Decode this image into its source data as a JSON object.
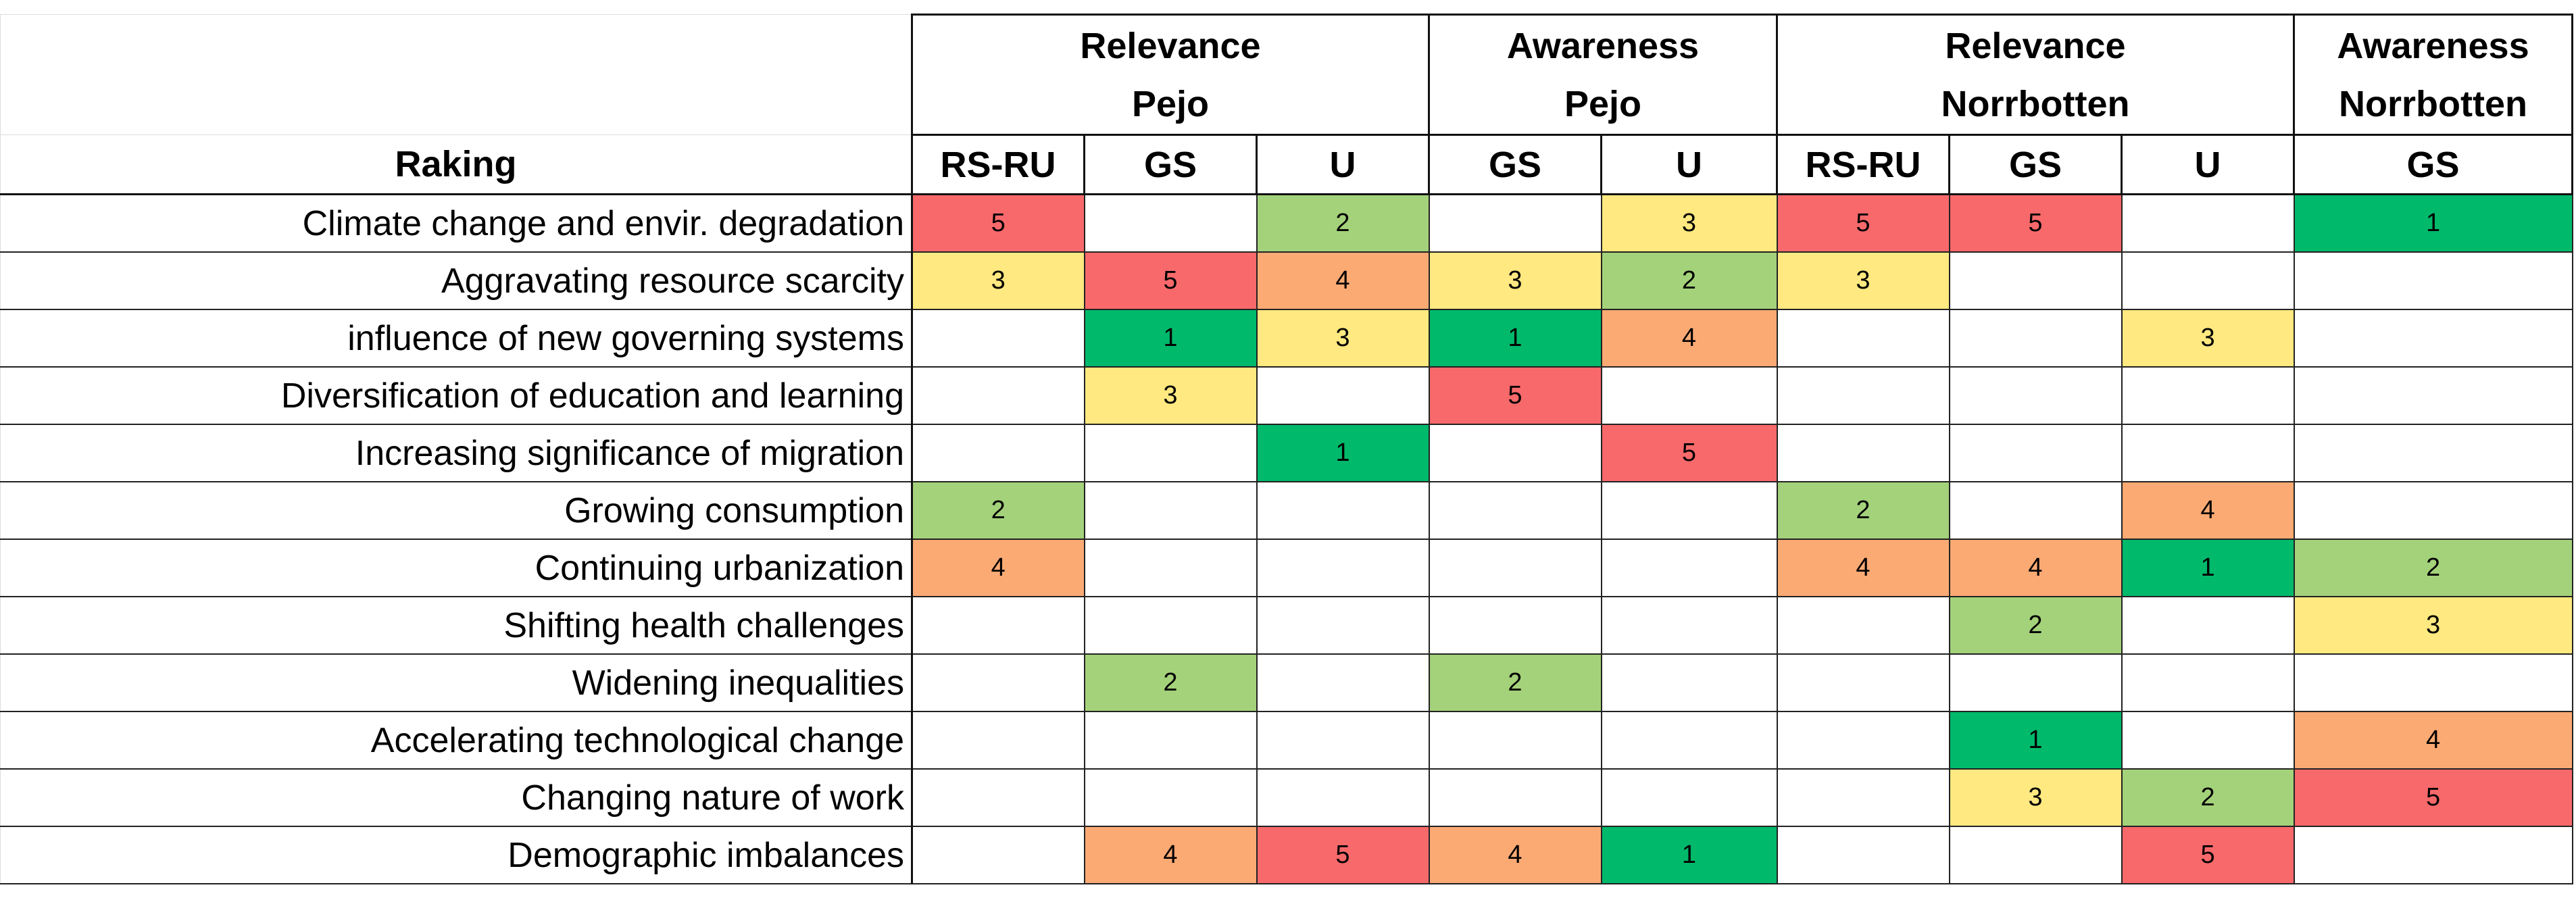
{
  "table": {
    "corner_label": "Raking",
    "groups": [
      {
        "lines": [
          "Relevance",
          "Pejo"
        ],
        "span": 3
      },
      {
        "lines": [
          "Awareness",
          "Pejo"
        ],
        "span": 2
      },
      {
        "lines": [
          "Relevance",
          "Norrbotten"
        ],
        "span": 3
      },
      {
        "lines": [
          "Awareness",
          "Norrbotten"
        ],
        "span": 1
      }
    ],
    "subheaders": [
      "RS-RU",
      "GS",
      "U",
      "GS",
      "U",
      "RS-RU",
      "GS",
      "U",
      "GS"
    ],
    "colors": {
      "1": "#00b96b",
      "2": "#a4d27a",
      "3": "#ffe980",
      "4": "#fbaa74",
      "5": "#f8696b"
    },
    "rows": [
      {
        "label": "Climate change and envir. degradation",
        "values": [
          5,
          null,
          2,
          null,
          3,
          5,
          5,
          null,
          1
        ]
      },
      {
        "label": "Aggravating resource scarcity",
        "values": [
          3,
          5,
          4,
          3,
          2,
          3,
          null,
          null,
          null
        ]
      },
      {
        "label": "influence of new governing systems",
        "values": [
          null,
          1,
          3,
          1,
          4,
          null,
          null,
          3,
          null
        ]
      },
      {
        "label": "Diversification of education and learning",
        "values": [
          null,
          3,
          null,
          5,
          null,
          null,
          null,
          null,
          null
        ]
      },
      {
        "label": "Increasing significance of migration",
        "values": [
          null,
          null,
          1,
          null,
          5,
          null,
          null,
          null,
          null
        ]
      },
      {
        "label": "Growing consumption",
        "values": [
          2,
          null,
          null,
          null,
          null,
          2,
          null,
          4,
          null
        ]
      },
      {
        "label": "Continuing urbanization",
        "values": [
          4,
          null,
          null,
          null,
          null,
          4,
          4,
          1,
          2
        ]
      },
      {
        "label": "Shifting health challenges",
        "values": [
          null,
          null,
          null,
          null,
          null,
          null,
          2,
          null,
          3
        ]
      },
      {
        "label": "Widening inequalities",
        "values": [
          null,
          2,
          null,
          2,
          null,
          null,
          null,
          null,
          null
        ]
      },
      {
        "label": "Accelerating technological change",
        "values": [
          null,
          null,
          null,
          null,
          null,
          null,
          1,
          null,
          4
        ]
      },
      {
        "label": "Changing nature of work",
        "values": [
          null,
          null,
          null,
          null,
          null,
          null,
          3,
          2,
          5
        ]
      },
      {
        "label": "Demographic imbalances",
        "values": [
          null,
          4,
          5,
          4,
          1,
          null,
          null,
          5,
          null
        ]
      }
    ]
  }
}
